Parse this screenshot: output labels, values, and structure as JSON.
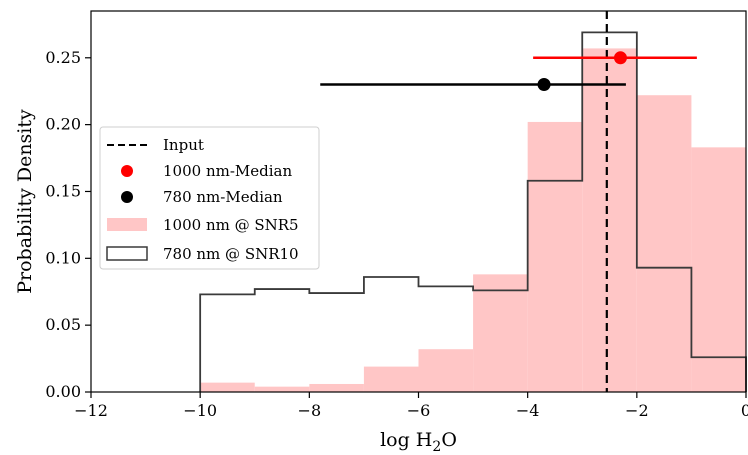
{
  "chart_data": {
    "type": "histogram",
    "xlabel": "log H₂O",
    "ylabel": "Probability Density",
    "xlim": [
      -12,
      0
    ],
    "ylim": [
      0,
      0.285
    ],
    "xticks": [
      -12,
      -10,
      -8,
      -6,
      -4,
      -2,
      0
    ],
    "xtick_labels": [
      "−12",
      "−10",
      "−8",
      "−6",
      "−4",
      "−2",
      "0"
    ],
    "yticks": [
      0.0,
      0.05,
      0.1,
      0.15,
      0.2,
      0.25
    ],
    "ytick_labels": [
      "0.00",
      "0.05",
      "0.10",
      "0.15",
      "0.20",
      "0.25"
    ],
    "legend_placement": "center-left",
    "colors": {
      "filled_hist": "#ffc6c6",
      "step_hist": "#3a3a3a",
      "median_1000": "#ff0000",
      "median_780": "#000000"
    },
    "input": {
      "label": "Input",
      "x": -2.55
    },
    "series": [
      {
        "name": "1000 nm @ SNR5",
        "kind": "filled",
        "bin_edges": [
          -10,
          -9,
          -8,
          -7,
          -6,
          -5,
          -4,
          -3,
          -2,
          -1,
          0
        ],
        "values": [
          0.007,
          0.004,
          0.006,
          0.019,
          0.032,
          0.088,
          0.202,
          0.257,
          0.222,
          0.183
        ]
      },
      {
        "name": "780 nm @ SNR10",
        "kind": "step",
        "bin_edges": [
          -10,
          -9,
          -8,
          -7,
          -6,
          -5,
          -4,
          -3,
          -2,
          -1,
          0
        ],
        "values": [
          0.073,
          0.077,
          0.074,
          0.086,
          0.079,
          0.076,
          0.158,
          0.269,
          0.093,
          0.026
        ]
      }
    ],
    "medians": [
      {
        "name": "1000 nm-Median",
        "x": -2.3,
        "y": 0.25,
        "xerr_low": -3.9,
        "xerr_high": -0.9
      },
      {
        "name": "780 nm-Median",
        "x": -3.7,
        "y": 0.23,
        "xerr_low": -7.8,
        "xerr_high": -2.2
      }
    ]
  }
}
